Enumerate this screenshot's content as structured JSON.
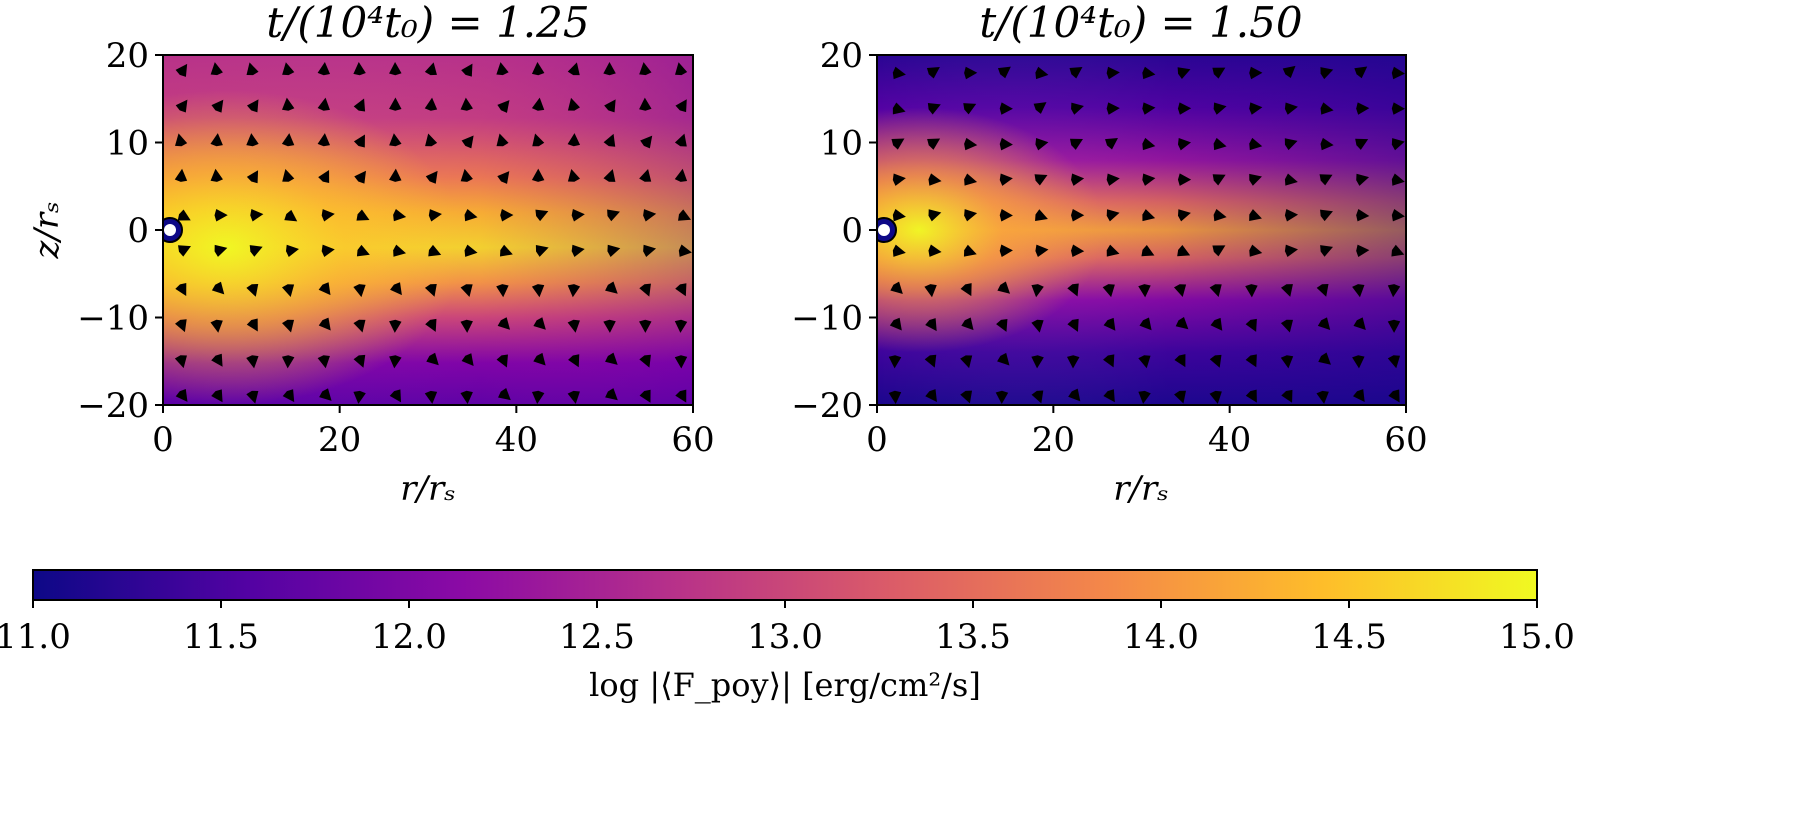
{
  "chart_data": [
    {
      "type": "heatmap",
      "title": "t/(10⁴t₀) = 1.25",
      "xlabel": "r/rₛ",
      "ylabel": "z/rₛ",
      "xlim": [
        0,
        60
      ],
      "ylim": [
        -20,
        20
      ],
      "xticks": [
        "0",
        "20",
        "40",
        "60"
      ],
      "yticks": [
        "20",
        "10",
        "0",
        "−10",
        "−20"
      ],
      "overlay": "velocity-arrows",
      "field_description_values": {
        "disk_log_flux_peak": 14.8,
        "upper_log_flux": 13.0,
        "lower_log_flux": 12.0
      }
    },
    {
      "type": "heatmap",
      "title": "t/(10⁴t₀) = 1.50",
      "xlabel": "r/rₛ",
      "ylabel": "",
      "xlim": [
        0,
        60
      ],
      "ylim": [
        -20,
        20
      ],
      "xticks": [
        "0",
        "20",
        "40",
        "60"
      ],
      "yticks": [
        "20",
        "10",
        "0",
        "−10",
        "−20"
      ],
      "overlay": "velocity-arrows",
      "field_description_values": {
        "disk_log_flux_peak": 14.5,
        "upper_log_flux": 11.5,
        "lower_log_flux": 11.2
      }
    }
  ],
  "colorbar": {
    "label": "log |⟨F_poy⟩| [erg/cm²/s]",
    "min": 11.0,
    "max": 15.0,
    "ticks": [
      "11.0",
      "11.5",
      "12.0",
      "12.5",
      "13.0",
      "13.5",
      "14.0",
      "14.5",
      "15.0"
    ],
    "colormap": "plasma",
    "colors": [
      "#0d0887",
      "#5302a3",
      "#8b0aa5",
      "#b83289",
      "#db5c68",
      "#f48849",
      "#febd2a",
      "#f0f921"
    ]
  }
}
